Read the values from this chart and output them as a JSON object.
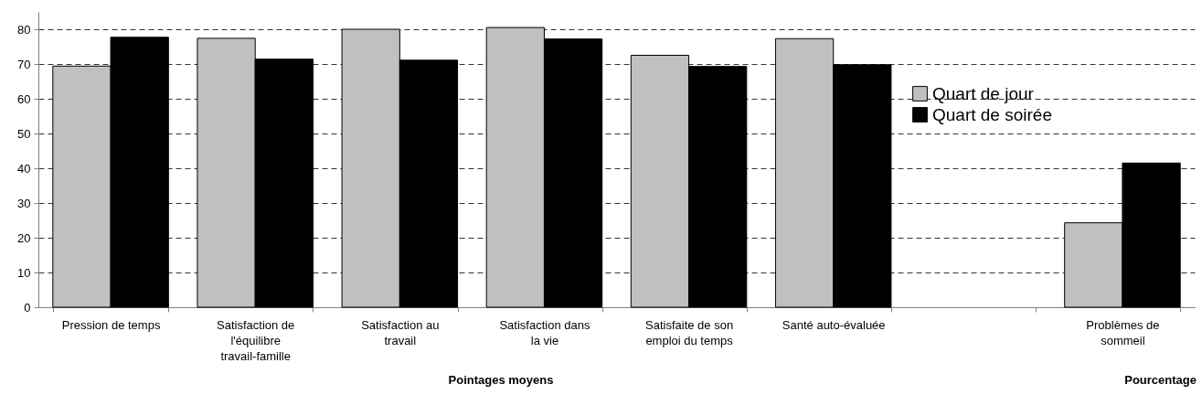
{
  "chart_data": {
    "type": "bar",
    "categories": [
      "Pression de temps",
      "Satisfaction de l'équilibre travail-famille",
      "Satisfaction au travail",
      "Satisfaction dans la vie",
      "Satisfaite de son emploi du temps",
      "Santé auto-évaluée",
      null,
      "Problèmes de sommeil"
    ],
    "series": [
      {
        "name": "Quart de jour",
        "color": "#c0c0c0",
        "values": [
          69.4,
          77.4,
          80.0,
          80.5,
          72.5,
          77.3,
          null,
          24.3
        ]
      },
      {
        "name": "Quart de soirée",
        "color": "#000000",
        "values": [
          77.7,
          71.4,
          71.1,
          77.2,
          69.3,
          69.8,
          null,
          41.5
        ]
      }
    ],
    "ylim": [
      0,
      85
    ],
    "yticks": [
      0,
      10,
      20,
      30,
      40,
      50,
      60,
      70,
      80
    ],
    "grid": "y",
    "legend": "right",
    "annotations": [
      "Pointages moyens",
      "Pourcentage"
    ]
  }
}
